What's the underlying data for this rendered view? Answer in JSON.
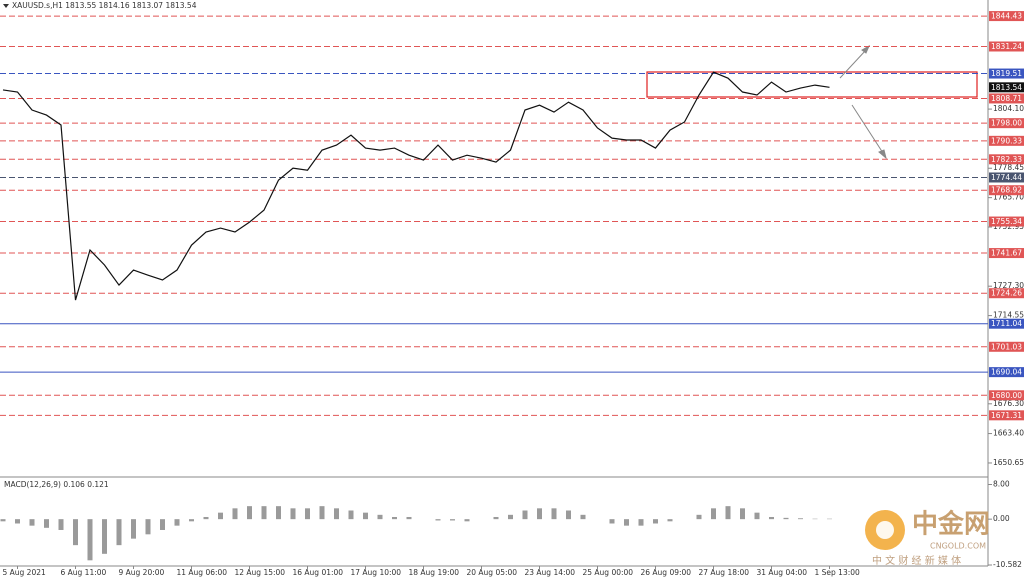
{
  "chart_data": [
    {
      "type": "line",
      "title": "XAUUSD.s,H1  1813.55 1814.16 1813.07 1813.54",
      "color": "#111111",
      "categories": [
        null,
        "5 Aug 2021",
        null,
        null,
        null,
        "6 Aug 11:00",
        null,
        null,
        null,
        "9 Aug 20:00",
        null,
        null,
        null,
        "11 Aug 06:00",
        null,
        null,
        null,
        "12 Aug 15:00",
        null,
        null,
        null,
        "16 Aug 01:00",
        null,
        null,
        null,
        "17 Aug 10:00",
        null,
        null,
        null,
        "18 Aug 19:00",
        null,
        null,
        null,
        "20 Aug 05:00",
        null,
        null,
        null,
        "23 Aug 14:00",
        null,
        null,
        null,
        "25 Aug 00:00",
        null,
        null,
        null,
        "26 Aug 09:00",
        null,
        null,
        null,
        "27 Aug 18:00",
        null,
        null,
        null,
        "31 Aug 04:00",
        null,
        null,
        null,
        "1 Sep 13:00"
      ],
      "values": [
        1812.4,
        1811.5,
        1803.7,
        1801.5,
        1797.2,
        1721.3,
        1743.0,
        1736.5,
        1727.8,
        1734.3,
        1732.1,
        1730.0,
        1734.3,
        1745.1,
        1750.8,
        1752.5,
        1750.8,
        1755.1,
        1760.3,
        1773.3,
        1778.5,
        1777.6,
        1786.3,
        1788.5,
        1792.8,
        1787.2,
        1786.3,
        1787.2,
        1784.1,
        1782.0,
        1788.5,
        1782.0,
        1784.1,
        1782.8,
        1781.1,
        1786.3,
        1803.7,
        1805.8,
        1802.8,
        1807.1,
        1803.7,
        1795.9,
        1791.5,
        1790.7,
        1790.7,
        1787.2,
        1795.0,
        1798.5,
        1810.2,
        1820.1,
        1817.5,
        1811.5,
        1810.2,
        1815.8,
        1811.5,
        1813.2,
        1814.5,
        1813.54
      ],
      "ylim": [
        1645,
        1851.4
      ],
      "yticks": [
        {
          "value": 1804.1,
          "label": "1804.10"
        },
        1778.45,
        {
          "value": 1765.7,
          "label": "1765.70"
        },
        1752.95,
        {
          "value": 1727.3,
          "label": "1727.30"
        },
        1714.55,
        {
          "value": 1676.3,
          "label": "1676.30"
        },
        {
          "value": 1663.4,
          "label": "1663.40"
        },
        1650.65
      ],
      "levels": [
        {
          "value": 1844.43,
          "label": "1844.43",
          "color": "#e05555",
          "style": "dashed"
        },
        {
          "value": 1831.24,
          "label": "1831.24",
          "color": "#e05555",
          "style": "dashed"
        },
        {
          "value": 1819.51,
          "label": "1819.51",
          "color": "#3a55c0",
          "style": "dashed"
        },
        {
          "value": 1813.54,
          "label": "1813.54",
          "color": "#111111",
          "style": "marker"
        },
        {
          "value": 1808.71,
          "label": "1808.71",
          "color": "#e05555",
          "style": "dashed"
        },
        {
          "value": 1798,
          "label": "1798.00",
          "color": "#e05555",
          "style": "dashed"
        },
        {
          "value": 1790.33,
          "label": "1790.33",
          "color": "#e05555",
          "style": "dashed"
        },
        {
          "value": 1782.33,
          "label": "1782.33",
          "color": "#e05555",
          "style": "dashed"
        },
        {
          "value": 1774.44,
          "label": "1774.44",
          "color": "#4a5570",
          "style": "dashed"
        },
        {
          "value": 1768.92,
          "label": "1768.92",
          "color": "#e05555",
          "style": "dashed"
        },
        {
          "value": 1755.34,
          "label": "1755.34",
          "color": "#e05555",
          "style": "dashed"
        },
        {
          "value": 1741.67,
          "label": "1741.67",
          "color": "#e05555",
          "style": "dashed"
        },
        {
          "value": 1724.26,
          "label": "1724.26",
          "color": "#e05555",
          "style": "dashed"
        },
        {
          "value": 1711.04,
          "label": "1711.04",
          "color": "#3a55c0",
          "style": "solid"
        },
        {
          "value": 1701.03,
          "label": "1701.03",
          "color": "#e05555",
          "style": "dashed"
        },
        {
          "value": 1690.04,
          "label": "1690.04",
          "color": "#3a55c0",
          "style": "solid"
        },
        {
          "value": 1680,
          "label": "1680.00",
          "color": "#e05555",
          "style": "dashed"
        },
        {
          "value": 1671.31,
          "label": "1671.31",
          "color": "#e05555",
          "style": "dashed"
        }
      ]
    },
    {
      "type": "bar",
      "title": "MACD(12,26,9) 0.106 0.121",
      "color": "#9a9a9a",
      "values": [
        -0.5,
        -1,
        -1.5,
        -2,
        -2.5,
        -6,
        -9.5,
        -8,
        -6,
        -4.5,
        -3.5,
        -2.5,
        -1.5,
        -0.5,
        0.5,
        1.5,
        2.5,
        3,
        3,
        3,
        2.5,
        2.5,
        3,
        2.5,
        2,
        1.5,
        1,
        0.5,
        0.5,
        0,
        -0.3,
        -0.3,
        -0.5,
        0,
        0.5,
        1,
        2,
        2.5,
        2.5,
        2,
        1,
        0,
        -1,
        -1.5,
        -1.5,
        -1,
        -0.5,
        0,
        1,
        2.5,
        3,
        2.5,
        1.5,
        0.5,
        0.3,
        0.2,
        0.1,
        0.1
      ],
      "ylim": [
        -10.582,
        9.5
      ],
      "yticks": [
        {
          "value": 8,
          "label": "8.00"
        },
        {
          "value": 0,
          "label": "0.00"
        },
        -10.582
      ]
    }
  ],
  "watermark": {
    "name": "中金网",
    "site": "CNGOLD.COM",
    "slogan": "中 文 财 经 新 媒 体"
  }
}
